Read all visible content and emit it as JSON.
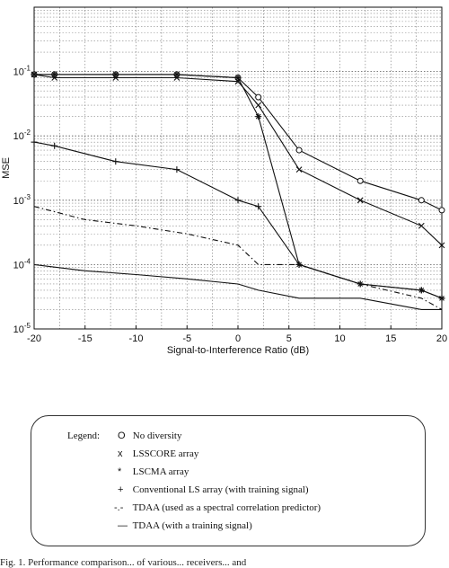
{
  "chart_data": {
    "type": "line",
    "title": "",
    "xlabel": "Signal-to-Interference Ratio (dB)",
    "ylabel": "MSE",
    "xlim": [
      -20,
      20
    ],
    "ylim": [
      1e-05,
      1
    ],
    "y_scale": "log",
    "grid": true,
    "x_ticks": [
      "-20",
      "-15",
      "-10",
      "-5",
      "0",
      "5",
      "10",
      "15",
      "20"
    ],
    "y_ticks": [
      {
        "base": "10",
        "exp": "-5",
        "value": 1e-05
      },
      {
        "base": "10",
        "exp": "-4",
        "value": 0.0001
      },
      {
        "base": "10",
        "exp": "-3",
        "value": 0.001
      },
      {
        "base": "10",
        "exp": "-2",
        "value": 0.01
      },
      {
        "base": "10",
        "exp": "-1",
        "value": 0.1
      }
    ],
    "series": [
      {
        "key": "no-diversity",
        "marker": "circle",
        "dash": "",
        "points": [
          [
            -20,
            0.09
          ],
          [
            -18,
            0.09
          ],
          [
            -12,
            0.09
          ],
          [
            -6,
            0.09
          ],
          [
            0,
            0.08
          ],
          [
            2,
            0.04
          ],
          [
            6,
            0.006
          ],
          [
            12,
            0.002
          ],
          [
            18,
            0.001
          ],
          [
            20,
            0.0007
          ]
        ]
      },
      {
        "key": "lsscore",
        "marker": "x",
        "dash": "",
        "points": [
          [
            -20,
            0.09
          ],
          [
            -18,
            0.08
          ],
          [
            -12,
            0.08
          ],
          [
            -6,
            0.08
          ],
          [
            0,
            0.07
          ],
          [
            2,
            0.03
          ],
          [
            6,
            0.003
          ],
          [
            12,
            0.001
          ],
          [
            18,
            0.0004
          ],
          [
            20,
            0.0002
          ]
        ]
      },
      {
        "key": "lscma",
        "marker": "star",
        "dash": "",
        "points": [
          [
            -20,
            0.09
          ],
          [
            -18,
            0.09
          ],
          [
            -12,
            0.09
          ],
          [
            -6,
            0.09
          ],
          [
            0,
            0.08
          ],
          [
            2,
            0.02
          ],
          [
            6,
            0.0001
          ],
          [
            12,
            5e-05
          ],
          [
            18,
            4e-05
          ],
          [
            20,
            3e-05
          ]
        ]
      },
      {
        "key": "conventional-ls",
        "marker": "plus",
        "dash": "",
        "points": [
          [
            -20,
            0.008
          ],
          [
            -18,
            0.007
          ],
          [
            -12,
            0.004
          ],
          [
            -6,
            0.003
          ],
          [
            0,
            0.001
          ],
          [
            2,
            0.0008
          ],
          [
            6,
            0.0001
          ],
          [
            12,
            5e-05
          ],
          [
            18,
            4e-05
          ],
          [
            20,
            3e-05
          ]
        ]
      },
      {
        "key": "tdaa-predictor",
        "marker": "",
        "dash": "6,3,1.5,3",
        "points": [
          [
            -20,
            0.0008
          ],
          [
            -15,
            0.0005
          ],
          [
            -10,
            0.0004
          ],
          [
            -5,
            0.0003
          ],
          [
            0,
            0.0002
          ],
          [
            2,
            0.0001
          ],
          [
            6,
            0.0001
          ],
          [
            12,
            5e-05
          ],
          [
            18,
            3e-05
          ],
          [
            20,
            2e-05
          ]
        ]
      },
      {
        "key": "tdaa-training",
        "marker": "",
        "dash": "",
        "points": [
          [
            -20,
            0.0001
          ],
          [
            -15,
            8e-05
          ],
          [
            -10,
            7e-05
          ],
          [
            -5,
            6e-05
          ],
          [
            0,
            5e-05
          ],
          [
            2,
            4e-05
          ],
          [
            6,
            3e-05
          ],
          [
            12,
            3e-05
          ],
          [
            18,
            2e-05
          ],
          [
            20,
            2e-05
          ]
        ]
      }
    ]
  },
  "legend": {
    "heading": "Legend:",
    "entries": [
      {
        "symbol": "O",
        "label": "No diversity"
      },
      {
        "symbol": "x",
        "label": "LSSCORE array"
      },
      {
        "symbol": "*",
        "label": "LSCMA array"
      },
      {
        "symbol": "+",
        "label": "Conventional LS array (with training signal)"
      },
      {
        "symbol": "-.-",
        "label": "TDAA (used as a spectral correlation predictor)"
      },
      {
        "symbol": "—",
        "label": "TDAA (with a training signal)"
      }
    ]
  },
  "caption": "Fig. 1.  Performance comparison...  of various...  receivers...  and"
}
